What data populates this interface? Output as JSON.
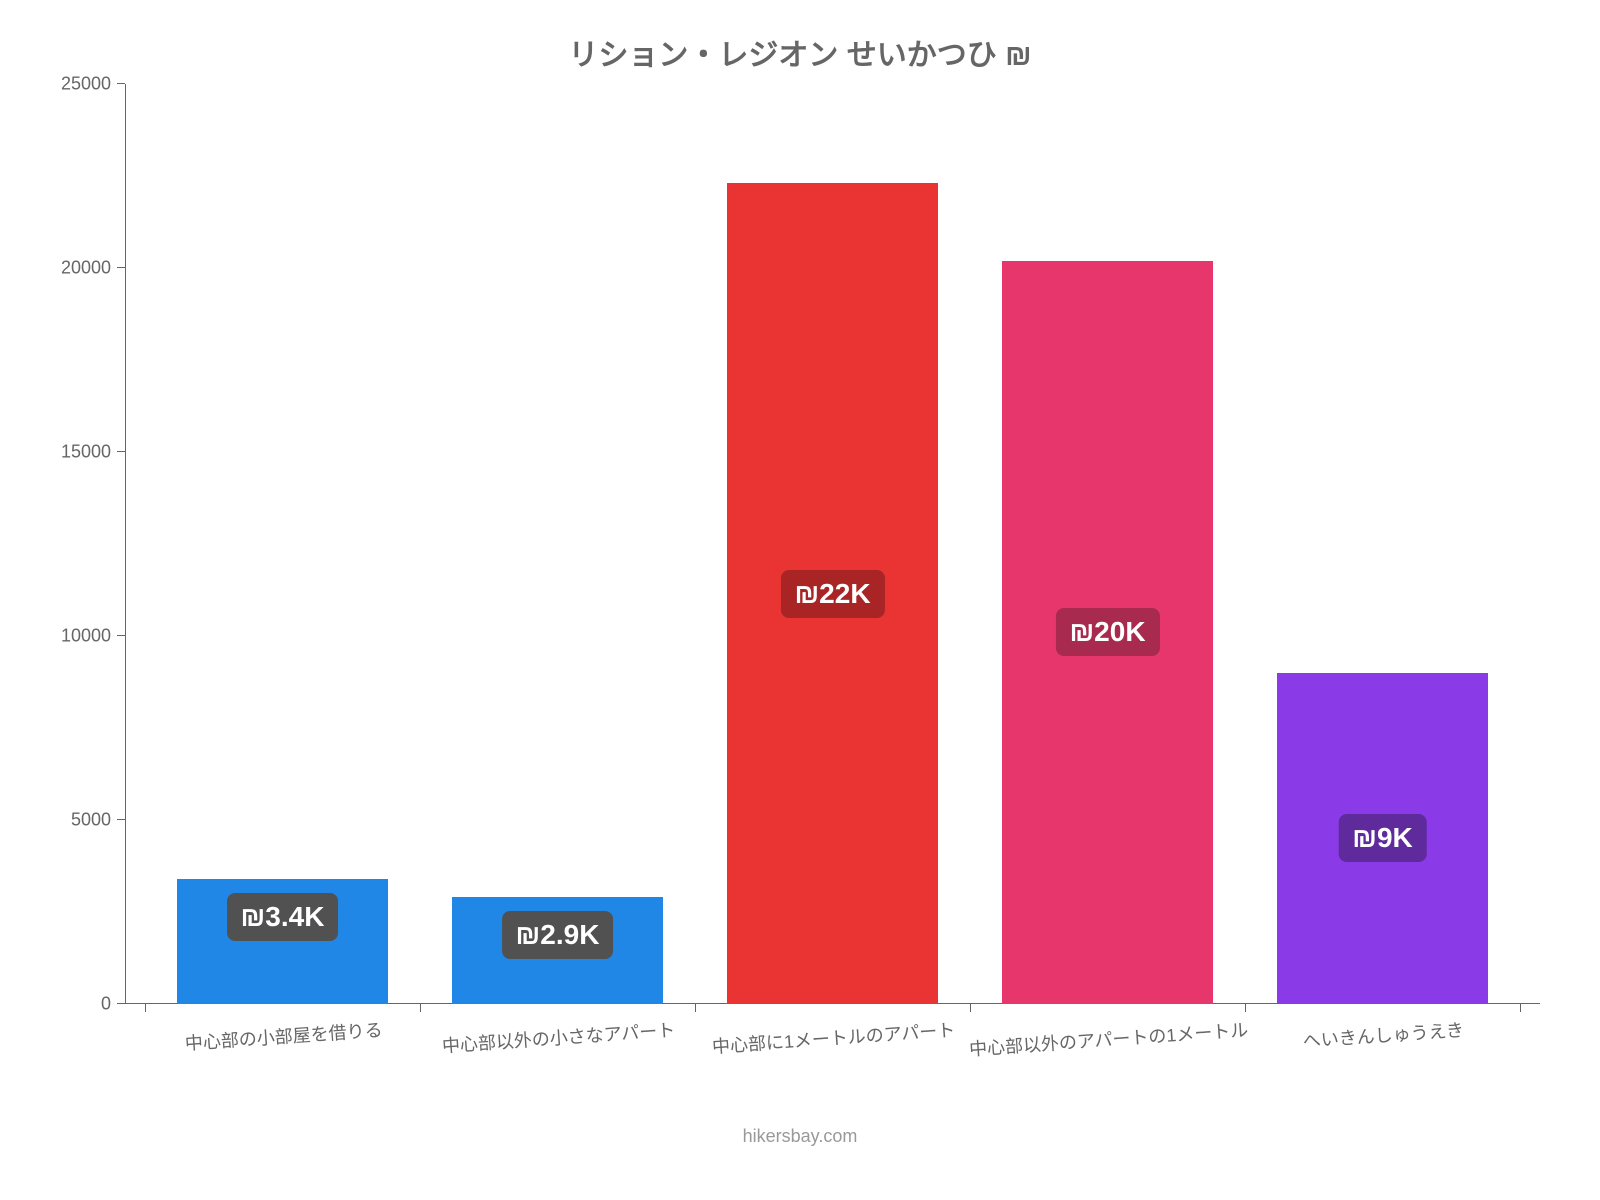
{
  "chart": {
    "type": "bar",
    "title": "リション・レジオン せいかつひ ₪",
    "title_fontsize": 30,
    "title_color": "#666666",
    "background_color": "#ffffff",
    "axis_color": "#666666",
    "tick_fontsize": 18,
    "tick_color": "#666666",
    "ylim": [
      0,
      25000
    ],
    "ytick_step": 5000,
    "yticks": [
      "0",
      "5000",
      "10000",
      "15000",
      "20000",
      "25000"
    ],
    "bar_width": 0.77,
    "categories": [
      "中心部の小部屋を借りる",
      "中心部以外の小さなアパート",
      "中心部に1メートルのアパート",
      "中心部以外のアパートの1メートル",
      "へいきんしゅうえき"
    ],
    "values": [
      3400,
      2900,
      22300,
      20200,
      9000
    ],
    "value_labels": [
      "₪3.4K",
      "₪2.9K",
      "₪22K",
      "₪20K",
      "₪9K"
    ],
    "bar_colors": [
      "#2187e7",
      "#2187e7",
      "#ea3434",
      "#e7366b",
      "#8a3be7"
    ],
    "label_bg_colors": [
      "#515151",
      "#515151",
      "#a92525",
      "#a82a4e",
      "#5f2a9c"
    ],
    "label_position": [
      "top",
      "top",
      "middle",
      "middle",
      "middle"
    ],
    "label_fontsize": 28,
    "label_color": "#ffffff",
    "x_label_rotate_deg": -4,
    "footer": "hikersbay.com",
    "footer_color": "#999999",
    "footer_fontsize": 18
  }
}
